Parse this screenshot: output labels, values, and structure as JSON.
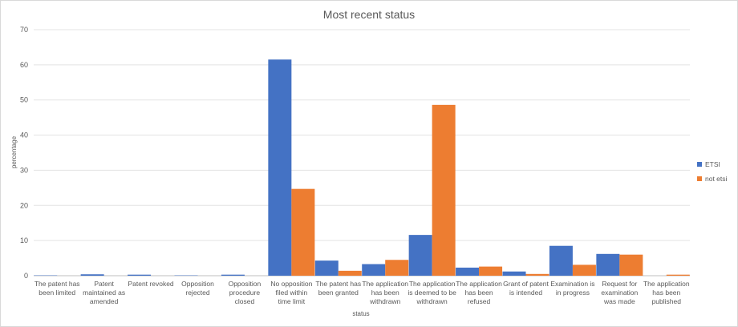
{
  "chart_data": {
    "type": "bar",
    "title": "Most recent status",
    "xlabel": "status",
    "ylabel": "percentage",
    "ylim": [
      0,
      70
    ],
    "yticks": [
      0,
      10,
      20,
      30,
      40,
      50,
      60,
      70
    ],
    "grid": true,
    "legend": "right",
    "categories": [
      [
        "The patent has",
        "been limited"
      ],
      [
        "Patent",
        "maintained as",
        "amended"
      ],
      [
        "Patent revoked"
      ],
      [
        "Opposition",
        "rejected"
      ],
      [
        "Opposition",
        "procedure",
        "closed"
      ],
      [
        "No opposition",
        "filed within",
        "time limit"
      ],
      [
        "The patent has",
        "been granted"
      ],
      [
        "The application",
        "has been",
        "withdrawn"
      ],
      [
        "The application",
        "is deemed to be",
        "withdrawn"
      ],
      [
        "The application",
        "has been",
        "refused"
      ],
      [
        "Grant of patent",
        "is intended"
      ],
      [
        "Examination is",
        "in progress"
      ],
      [
        "Request for",
        "examination",
        "was made"
      ],
      [
        "The application",
        "has been",
        "published"
      ]
    ],
    "series": [
      {
        "name": "ETSI",
        "color": "#4472C4",
        "values": [
          0.1,
          0.4,
          0.3,
          0.1,
          0.3,
          61.5,
          4.3,
          3.3,
          11.6,
          2.3,
          1.2,
          8.5,
          6.2,
          0
        ]
      },
      {
        "name": "not etsi",
        "color": "#ED7D31",
        "values": [
          0,
          0,
          0,
          0,
          0,
          24.7,
          1.4,
          4.5,
          48.6,
          2.6,
          0.5,
          3.1,
          6.0,
          0.3
        ]
      }
    ]
  }
}
